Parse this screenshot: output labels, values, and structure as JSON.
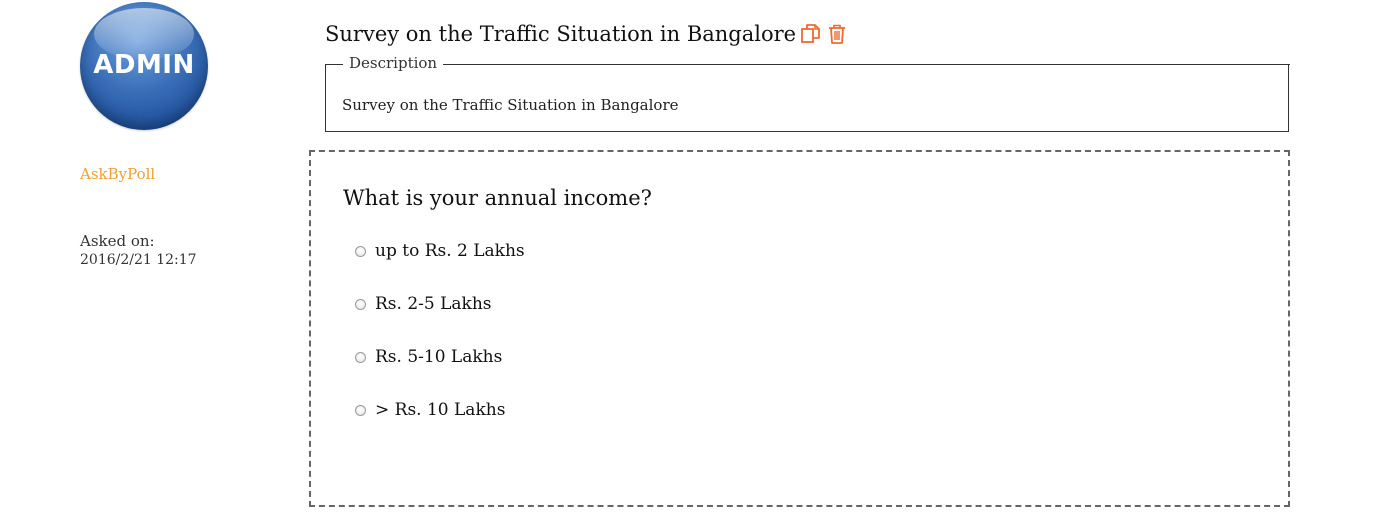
{
  "profile": {
    "avatar_text": "ADMIN",
    "username": "AskByPoll",
    "asked_label": "Asked on:",
    "asked_date": "2016/2/21 12:17"
  },
  "survey": {
    "title": "Survey on the Traffic Situation in Bangalore",
    "description_legend": "Description",
    "description": "Survey on the Traffic Situation in Bangalore"
  },
  "question": {
    "text": "What is your annual income?",
    "options": [
      "up to Rs. 2 Lakhs",
      "Rs. 2-5 Lakhs",
      "Rs. 5-10 Lakhs",
      "> Rs. 10 Lakhs"
    ]
  },
  "icons": {
    "copy": "copy-icon",
    "delete": "trash-icon"
  },
  "colors": {
    "accent": "#f0a030",
    "icon": "#f06a30"
  }
}
